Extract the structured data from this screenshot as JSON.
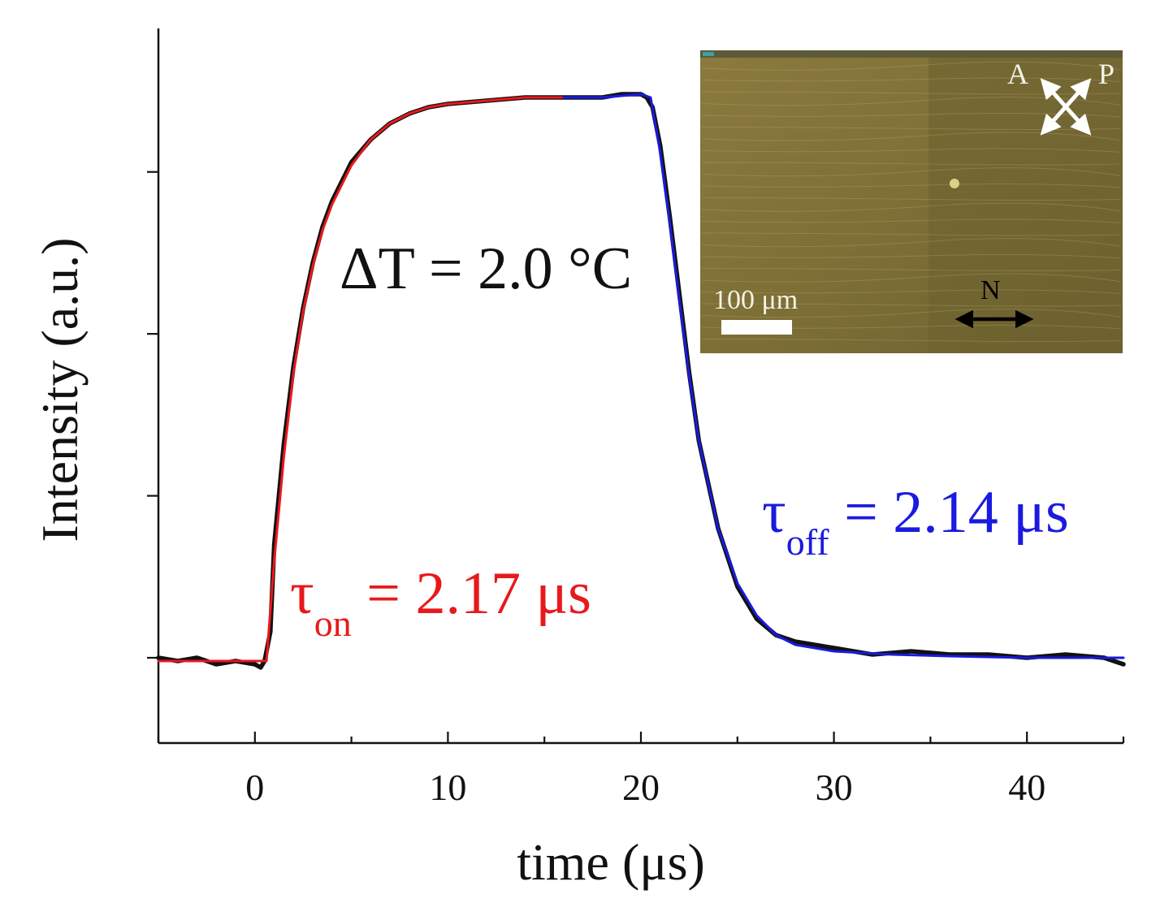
{
  "chart_data": {
    "type": "line",
    "title": "",
    "xlabel": "time (μs)",
    "ylabel": "Intensity (a.u.)",
    "xlim": [
      -5,
      45
    ],
    "ylim": [
      -0.25,
      1.9
    ],
    "x_ticks": [
      0,
      10,
      20,
      30,
      40
    ],
    "x_tick_labels": [
      "0",
      "10",
      "20",
      "30",
      "40"
    ],
    "y_ticks": [
      0,
      0.5,
      1.0,
      1.5
    ],
    "y_tick_labels_visible": false,
    "grid": false,
    "series": [
      {
        "name": "measured intensity",
        "color": "#111111",
        "x": [
          -5,
          -4,
          -3,
          -2,
          -1,
          0,
          0.3,
          0.5,
          0.8,
          1,
          1.5,
          2,
          2.5,
          3,
          3.5,
          4,
          5,
          6,
          7,
          8,
          9,
          10,
          12,
          14,
          16,
          18,
          19,
          20,
          20.3,
          20.6,
          21,
          21.5,
          22,
          22.5,
          23,
          24,
          25,
          26,
          27,
          28,
          30,
          32,
          34,
          36,
          38,
          40,
          42,
          44,
          45
        ],
        "y": [
          0.0,
          -0.01,
          0.0,
          -0.02,
          -0.01,
          -0.02,
          -0.03,
          -0.01,
          0.08,
          0.35,
          0.66,
          0.9,
          1.08,
          1.22,
          1.33,
          1.41,
          1.53,
          1.6,
          1.65,
          1.68,
          1.7,
          1.71,
          1.72,
          1.73,
          1.73,
          1.73,
          1.74,
          1.74,
          1.73,
          1.7,
          1.58,
          1.36,
          1.12,
          0.88,
          0.67,
          0.4,
          0.22,
          0.12,
          0.07,
          0.05,
          0.03,
          0.01,
          0.02,
          0.01,
          0.01,
          0.0,
          0.01,
          0.0,
          -0.02
        ]
      },
      {
        "name": "fit (rise)",
        "color": "#e8191c",
        "x": [
          -5,
          0,
          0.6,
          1,
          1.5,
          2,
          2.5,
          3,
          3.5,
          4,
          5,
          6,
          7,
          8,
          9,
          10,
          12,
          14,
          16
        ],
        "y": [
          -0.01,
          -0.01,
          -0.01,
          0.3,
          0.62,
          0.88,
          1.07,
          1.21,
          1.32,
          1.4,
          1.52,
          1.6,
          1.65,
          1.68,
          1.7,
          1.71,
          1.72,
          1.73,
          1.73
        ]
      },
      {
        "name": "fit (decay)",
        "color": "#1a1ae0",
        "x": [
          16,
          18,
          20,
          20.5,
          21,
          21.5,
          22,
          22.5,
          23,
          24,
          25,
          26,
          27,
          28,
          30,
          33,
          36,
          40,
          45
        ],
        "y": [
          1.73,
          1.73,
          1.74,
          1.73,
          1.56,
          1.34,
          1.1,
          0.87,
          0.67,
          0.4,
          0.23,
          0.13,
          0.07,
          0.04,
          0.02,
          0.01,
          0.005,
          0.0,
          0.0
        ]
      }
    ],
    "annotations": [
      {
        "id": "delta-t",
        "text": "ΔT = 2.0 °C",
        "color": "#111111"
      },
      {
        "id": "tau-on",
        "symbol": "τ",
        "subscript": "on",
        "value_text": " = 2.17 μs",
        "color": "#e8191c"
      },
      {
        "id": "tau-off",
        "symbol": "τ",
        "subscript": "off",
        "value_text": " = 2.14 μs",
        "color": "#1a1ae0"
      }
    ],
    "inset": {
      "description": "polarized optical microscope image",
      "scale_bar_label": "100 μm",
      "analyzer_label": "A",
      "polarizer_label": "P",
      "director_label": "N"
    }
  }
}
